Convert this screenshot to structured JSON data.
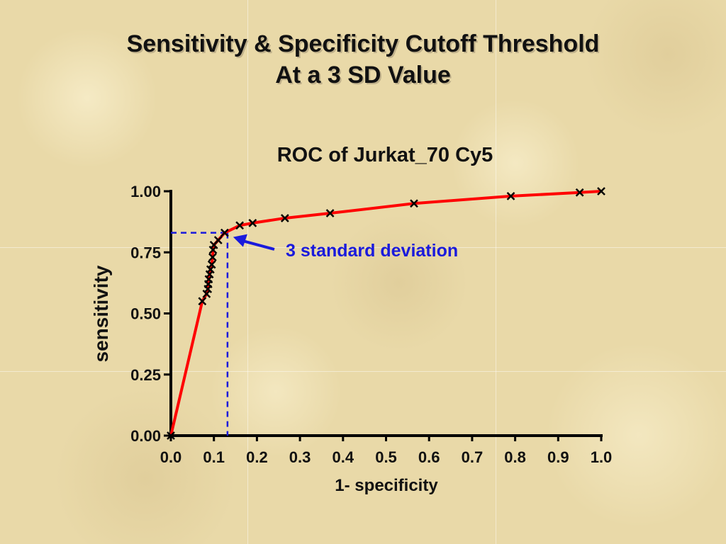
{
  "slide": {
    "title_line1": "Sensitivity & Specificity Cutoff Threshold",
    "title_line2": "At a 3 SD Value"
  },
  "chart_data": {
    "type": "line",
    "title": "ROC of Jurkat_70 Cy5",
    "xlabel": "1- specificity",
    "ylabel": "sensitivity",
    "xlim": [
      0,
      1
    ],
    "ylim": [
      0,
      1
    ],
    "x_ticks": [
      "0.0",
      "0.1",
      "0.2",
      "0.3",
      "0.4",
      "0.5",
      "0.6",
      "0.7",
      "0.8",
      "0.9",
      "1.0"
    ],
    "y_ticks": [
      "0.00",
      "0.25",
      "0.50",
      "0.75",
      "1.00"
    ],
    "grid": false,
    "line_color": "#ff0000",
    "marker": "x",
    "series": [
      {
        "x": [
          0.0,
          0.073,
          0.083,
          0.086,
          0.087,
          0.088,
          0.09,
          0.092,
          0.095,
          0.097,
          0.098,
          0.1,
          0.11,
          0.125,
          0.16,
          0.19,
          0.265,
          0.37,
          0.565,
          0.79,
          0.95,
          1.0
        ],
        "y": [
          0.0,
          0.55,
          0.58,
          0.6,
          0.62,
          0.64,
          0.66,
          0.68,
          0.7,
          0.73,
          0.76,
          0.78,
          0.8,
          0.83,
          0.86,
          0.87,
          0.89,
          0.91,
          0.95,
          0.98,
          0.995,
          1.0
        ]
      }
    ],
    "annotation": {
      "text": "3 standard deviation",
      "color": "#1a1adc",
      "x": 0.125,
      "y": 0.83
    }
  }
}
